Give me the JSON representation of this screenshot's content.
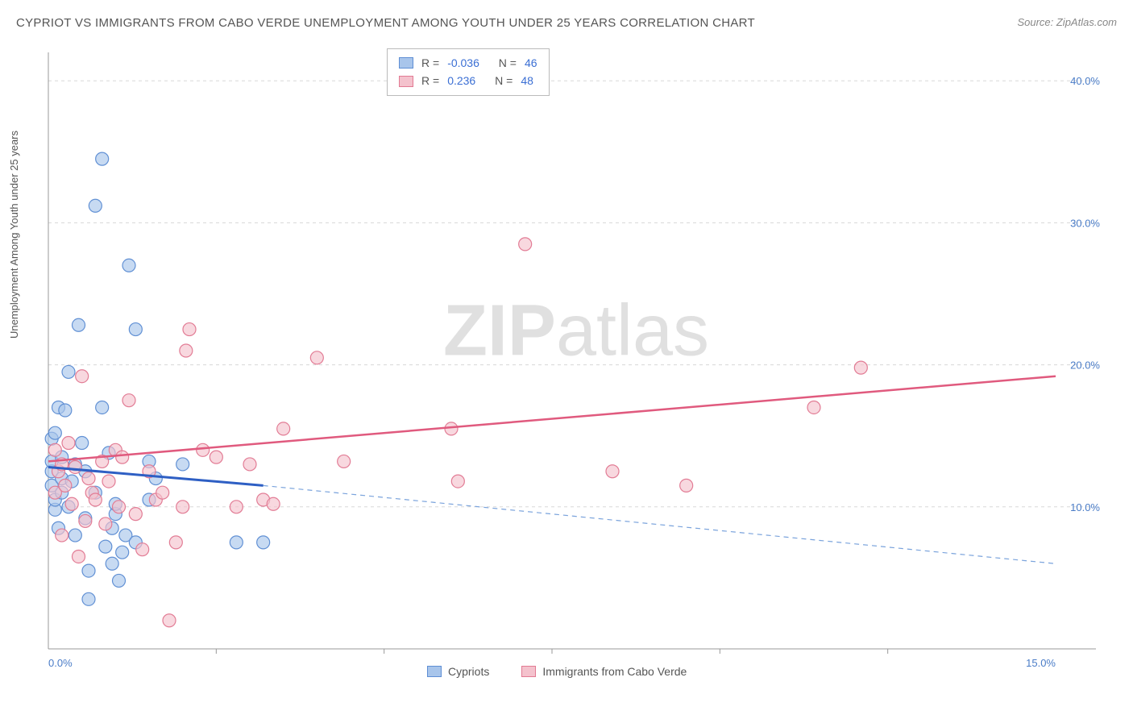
{
  "title": "CYPRIOT VS IMMIGRANTS FROM CABO VERDE UNEMPLOYMENT AMONG YOUTH UNDER 25 YEARS CORRELATION CHART",
  "source": "Source: ZipAtlas.com",
  "y_axis_label": "Unemployment Among Youth under 25 years",
  "watermark_a": "ZIP",
  "watermark_b": "atlas",
  "chart": {
    "type": "scatter",
    "xlim": [
      0,
      15
    ],
    "ylim": [
      0,
      42
    ],
    "x_ticks": [
      {
        "pos": 0,
        "label": "0.0%"
      },
      {
        "pos": 15,
        "label": "15.0%"
      }
    ],
    "x_minor_ticks": [
      2.5,
      5,
      7.5,
      10,
      12.5
    ],
    "y_ticks": [
      {
        "pos": 10,
        "label": "10.0%"
      },
      {
        "pos": 20,
        "label": "20.0%"
      },
      {
        "pos": 30,
        "label": "30.0%"
      },
      {
        "pos": 40,
        "label": "40.0%"
      }
    ],
    "background_color": "#ffffff",
    "grid_color": "#d8d8d8",
    "axis_color": "#999999",
    "tick_label_color": "#4a7cc7",
    "series": [
      {
        "name": "Cypriots",
        "fill": "#a8c5eb",
        "stroke": "#5e8ed4",
        "opacity": 0.65,
        "marker_radius": 8,
        "trend": {
          "x1": 0,
          "y1": 12.8,
          "x2": 3.2,
          "y2": 11.5,
          "color": "#2e5fc4",
          "width": 3,
          "dash": "none"
        },
        "trend_ext": {
          "x1": 3.2,
          "y1": 11.5,
          "x2": 15,
          "y2": 6.0,
          "color": "#7aa3dc",
          "width": 1.2,
          "dash": "6 5"
        },
        "points": [
          [
            0.05,
            12.5
          ],
          [
            0.05,
            13.2
          ],
          [
            0.05,
            11.5
          ],
          [
            0.05,
            14.8
          ],
          [
            0.1,
            9.8
          ],
          [
            0.1,
            10.5
          ],
          [
            0.1,
            15.2
          ],
          [
            0.15,
            8.5
          ],
          [
            0.15,
            17.0
          ],
          [
            0.2,
            11.0
          ],
          [
            0.2,
            12.0
          ],
          [
            0.2,
            13.5
          ],
          [
            0.25,
            16.8
          ],
          [
            0.3,
            19.5
          ],
          [
            0.3,
            10.0
          ],
          [
            0.35,
            11.8
          ],
          [
            0.4,
            8.0
          ],
          [
            0.4,
            13.0
          ],
          [
            0.45,
            22.8
          ],
          [
            0.5,
            14.5
          ],
          [
            0.55,
            9.2
          ],
          [
            0.55,
            12.5
          ],
          [
            0.6,
            3.5
          ],
          [
            0.6,
            5.5
          ],
          [
            0.7,
            31.2
          ],
          [
            0.7,
            11.0
          ],
          [
            0.8,
            17.0
          ],
          [
            0.8,
            34.5
          ],
          [
            0.85,
            7.2
          ],
          [
            0.9,
            13.8
          ],
          [
            0.95,
            6.0
          ],
          [
            0.95,
            8.5
          ],
          [
            1.0,
            9.5
          ],
          [
            1.0,
            10.2
          ],
          [
            1.05,
            4.8
          ],
          [
            1.1,
            6.8
          ],
          [
            1.15,
            8.0
          ],
          [
            1.2,
            27.0
          ],
          [
            1.3,
            7.5
          ],
          [
            1.3,
            22.5
          ],
          [
            1.5,
            13.2
          ],
          [
            1.5,
            10.5
          ],
          [
            1.6,
            12.0
          ],
          [
            2.0,
            13.0
          ],
          [
            2.8,
            7.5
          ],
          [
            3.2,
            7.5
          ]
        ]
      },
      {
        "name": "Immigrants from Cabo Verde",
        "fill": "#f4c2cd",
        "stroke": "#e27a93",
        "opacity": 0.65,
        "marker_radius": 8,
        "trend": {
          "x1": 0,
          "y1": 13.2,
          "x2": 15,
          "y2": 19.2,
          "color": "#e05a7e",
          "width": 2.5,
          "dash": "none"
        },
        "points": [
          [
            0.1,
            14.0
          ],
          [
            0.1,
            11.0
          ],
          [
            0.15,
            12.5
          ],
          [
            0.2,
            8.0
          ],
          [
            0.2,
            13.0
          ],
          [
            0.25,
            11.5
          ],
          [
            0.3,
            14.5
          ],
          [
            0.35,
            10.2
          ],
          [
            0.4,
            12.8
          ],
          [
            0.45,
            6.5
          ],
          [
            0.5,
            19.2
          ],
          [
            0.55,
            9.0
          ],
          [
            0.6,
            12.0
          ],
          [
            0.65,
            11.0
          ],
          [
            0.7,
            10.5
          ],
          [
            0.8,
            13.2
          ],
          [
            0.85,
            8.8
          ],
          [
            0.9,
            11.8
          ],
          [
            1.0,
            14.0
          ],
          [
            1.05,
            10.0
          ],
          [
            1.1,
            13.5
          ],
          [
            1.2,
            17.5
          ],
          [
            1.3,
            9.5
          ],
          [
            1.4,
            7.0
          ],
          [
            1.5,
            12.5
          ],
          [
            1.6,
            10.5
          ],
          [
            1.7,
            11.0
          ],
          [
            1.8,
            2.0
          ],
          [
            1.9,
            7.5
          ],
          [
            2.0,
            10.0
          ],
          [
            2.05,
            21.0
          ],
          [
            2.1,
            22.5
          ],
          [
            2.3,
            14.0
          ],
          [
            2.5,
            13.5
          ],
          [
            2.8,
            10.0
          ],
          [
            3.0,
            13.0
          ],
          [
            3.2,
            10.5
          ],
          [
            3.35,
            10.2
          ],
          [
            3.5,
            15.5
          ],
          [
            4.0,
            20.5
          ],
          [
            4.4,
            13.2
          ],
          [
            6.0,
            15.5
          ],
          [
            6.1,
            11.8
          ],
          [
            7.1,
            28.5
          ],
          [
            8.4,
            12.5
          ],
          [
            9.5,
            11.5
          ],
          [
            11.4,
            17.0
          ],
          [
            12.1,
            19.8
          ]
        ]
      }
    ]
  },
  "stats": [
    {
      "swatch_fill": "#a8c5eb",
      "swatch_stroke": "#5e8ed4",
      "R_label": "R =",
      "R": "-0.036",
      "N_label": "N =",
      "N": "46"
    },
    {
      "swatch_fill": "#f4c2cd",
      "swatch_stroke": "#e27a93",
      "R_label": "R =",
      "R": "0.236",
      "N_label": "N =",
      "N": "48"
    }
  ],
  "legend": [
    {
      "fill": "#a8c5eb",
      "stroke": "#5e8ed4",
      "label": "Cypriots"
    },
    {
      "fill": "#f4c2cd",
      "stroke": "#e27a93",
      "label": "Immigrants from Cabo Verde"
    }
  ]
}
